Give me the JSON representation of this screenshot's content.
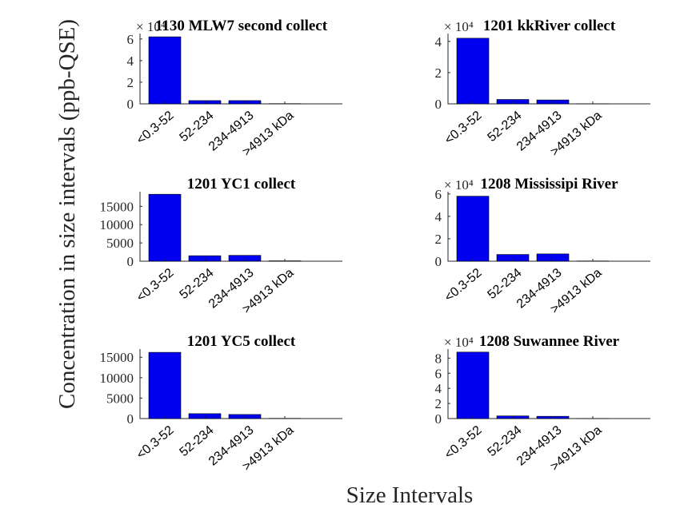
{
  "figure": {
    "ylabel": "Concentration in size intervals (ppb-QSE)",
    "xlabel": "Size Intervals"
  },
  "chart_data": [
    {
      "type": "bar",
      "title": "1130 MLW7 second collect",
      "categories": [
        "<0.3-52",
        "52-234",
        "234-4913",
        ">4913 kDa"
      ],
      "values": [
        62000,
        3000,
        3000,
        200
      ],
      "ylim": [
        0,
        65000
      ],
      "yticks": [
        0,
        20000,
        40000,
        60000
      ],
      "ytick_labels": [
        "0",
        "2",
        "4",
        "6"
      ],
      "exponent_label": "× 10⁴",
      "bar_color": "#0000ee"
    },
    {
      "type": "bar",
      "title": "1201 kkRiver collect",
      "categories": [
        "<0.3-52",
        "52-234",
        "234-4913",
        ">4913 kDa"
      ],
      "values": [
        42000,
        2800,
        2500,
        100
      ],
      "ylim": [
        0,
        45000
      ],
      "yticks": [
        0,
        20000,
        40000
      ],
      "ytick_labels": [
        "0",
        "2",
        "4"
      ],
      "exponent_label": "× 10⁴",
      "bar_color": "#0000ee"
    },
    {
      "type": "bar",
      "title": "1201 YC1 collect",
      "categories": [
        "<0.3-52",
        "52-234",
        "234-4913",
        ">4913 kDa"
      ],
      "values": [
        18300,
        1500,
        1600,
        100
      ],
      "ylim": [
        0,
        19000
      ],
      "yticks": [
        0,
        5000,
        10000,
        15000
      ],
      "ytick_labels": [
        "0",
        "5000",
        "10000",
        "15000"
      ],
      "exponent_label": "",
      "bar_color": "#0000ee"
    },
    {
      "type": "bar",
      "title": "1208 Mississipi River",
      "categories": [
        "<0.3-52",
        "52-234",
        "234-4913",
        ">4913 kDa"
      ],
      "values": [
        58000,
        6000,
        6500,
        200
      ],
      "ylim": [
        0,
        62000
      ],
      "yticks": [
        0,
        20000,
        40000,
        60000
      ],
      "ytick_labels": [
        "0",
        "2",
        "4",
        "6"
      ],
      "exponent_label": "× 10⁴",
      "bar_color": "#0000ee"
    },
    {
      "type": "bar",
      "title": "1201 YC5 collect",
      "categories": [
        "<0.3-52",
        "52-234",
        "234-4913",
        ">4913 kDa"
      ],
      "values": [
        16200,
        1200,
        1000,
        50
      ],
      "ylim": [
        0,
        17000
      ],
      "yticks": [
        0,
        5000,
        10000,
        15000
      ],
      "ytick_labels": [
        "0",
        "5000",
        "10000",
        "15000"
      ],
      "exponent_label": "",
      "bar_color": "#0000ee"
    },
    {
      "type": "bar",
      "title": "1208 Suwannee River",
      "categories": [
        "<0.3-52",
        "52-234",
        "234-4913",
        ">4913 kDa"
      ],
      "values": [
        88000,
        3500,
        3000,
        100
      ],
      "ylim": [
        0,
        92000
      ],
      "yticks": [
        0,
        20000,
        40000,
        60000,
        80000
      ],
      "ytick_labels": [
        "0",
        "2",
        "4",
        "6",
        "8"
      ],
      "exponent_label": "× 10⁴",
      "bar_color": "#0000ee"
    }
  ]
}
